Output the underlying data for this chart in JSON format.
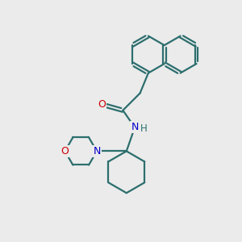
{
  "background_color": "#ebebeb",
  "bond_color": "#2d6e6e",
  "bond_width": 1.6,
  "O_color": "#cc0000",
  "N_color": "#0000cc",
  "figsize": [
    3.0,
    3.0
  ],
  "dpi": 100,
  "xlim": [
    0,
    10
  ],
  "ylim": [
    0,
    10
  ]
}
